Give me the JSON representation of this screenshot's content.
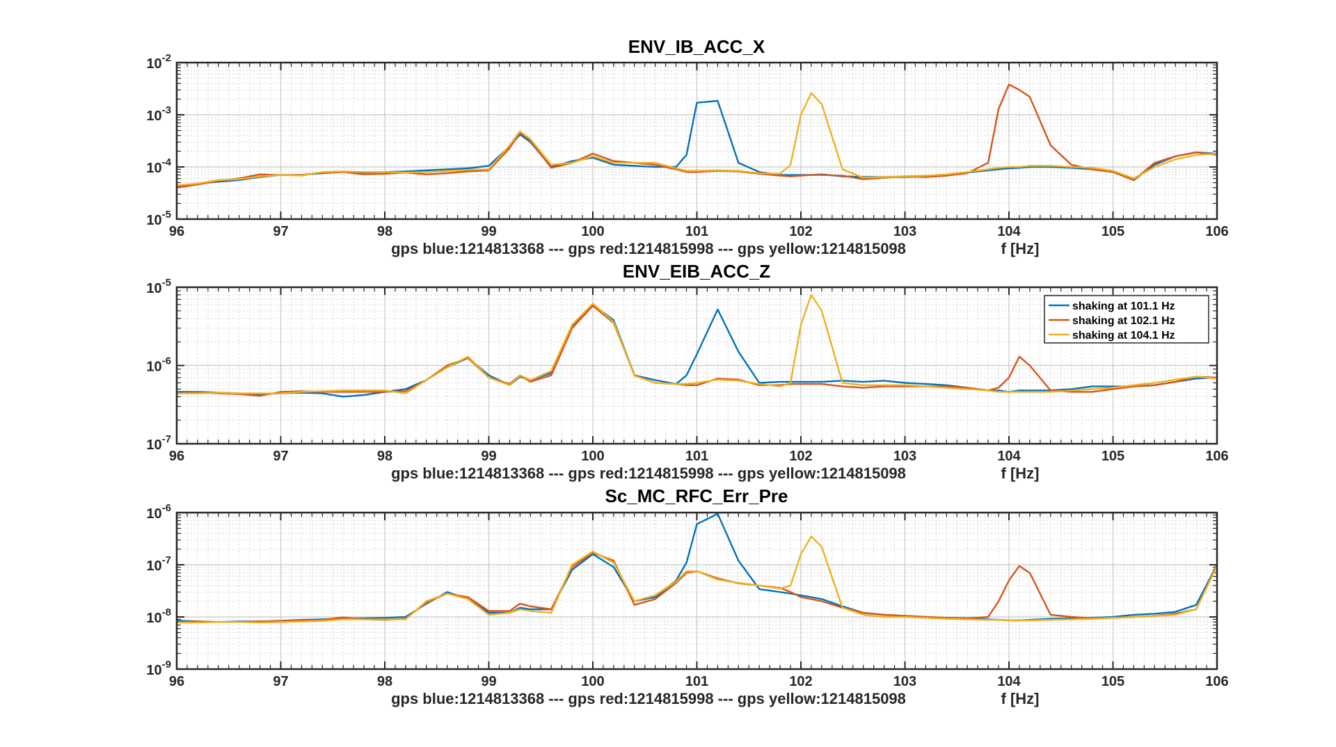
{
  "chart_data": [
    {
      "type": "line",
      "title": "ENV_IB_ACC_X",
      "xlabel": "gps blue:1214813368 --- gps red:1214815998 --- gps yellow:1214815098",
      "xunit": "f [Hz]",
      "xlim": [
        96,
        106
      ],
      "ylim": [
        1e-05,
        0.01
      ],
      "yscale": "log",
      "grid": true,
      "minor_grid": true,
      "x_ticks": [
        "96",
        "97",
        "98",
        "99",
        "100",
        "101",
        "102",
        "103",
        "104",
        "105",
        "106"
      ],
      "y_ticks": [
        {
          "base": "10",
          "exp": "-5"
        },
        {
          "base": "10",
          "exp": "-4"
        },
        {
          "base": "10",
          "exp": "-3"
        },
        {
          "base": "10",
          "exp": "-2"
        }
      ],
      "x": [
        96,
        96.2,
        96.4,
        96.6,
        96.8,
        97,
        97.2,
        97.4,
        97.6,
        97.8,
        98,
        98.2,
        98.4,
        98.6,
        98.8,
        99,
        99.2,
        99.3,
        99.4,
        99.6,
        99.8,
        100,
        100.2,
        100.4,
        100.6,
        100.8,
        100.9,
        101,
        101.2,
        101.4,
        101.6,
        101.8,
        101.9,
        102,
        102.1,
        102.2,
        102.4,
        102.6,
        102.8,
        103,
        103.2,
        103.4,
        103.6,
        103.8,
        103.9,
        104,
        104.1,
        104.2,
        104.4,
        104.6,
        104.8,
        105,
        105.2,
        105.4,
        105.6,
        105.8,
        106
      ],
      "series": [
        {
          "name": "shaking at 101.1 Hz",
          "color": "#0072BD",
          "values": [
            4.2e-05,
            4.8e-05,
            5.2e-05,
            5.6e-05,
            6.4e-05,
            7e-05,
            7e-05,
            7.6e-05,
            8e-05,
            7.8e-05,
            8e-05,
            8.2e-05,
            8.6e-05,
            9e-05,
            9.4e-05,
            0.000105,
            0.00025,
            0.00042,
            0.0003,
            0.0001,
            0.00013,
            0.00015,
            0.00011,
            0.000105,
            0.0001,
            0.0001,
            0.00017,
            0.0017,
            0.00185,
            0.00012,
            8e-05,
            7e-05,
            7e-05,
            7e-05,
            7e-05,
            7.2e-05,
            6.6e-05,
            6.4e-05,
            6.4e-05,
            6.4e-05,
            6.6e-05,
            7e-05,
            7.8e-05,
            8.6e-05,
            9e-05,
            9.4e-05,
            9.6e-05,
            0.0001,
            0.0001,
            9.6e-05,
            9e-05,
            8e-05,
            5.6e-05,
            0.00011,
            0.00016,
            0.00019,
            0.00018
          ]
        },
        {
          "name": "shaking at 102.1 Hz",
          "color": "#D95319",
          "values": [
            4e-05,
            4.6e-05,
            5.4e-05,
            6e-05,
            7.2e-05,
            7e-05,
            7e-05,
            7.8e-05,
            8e-05,
            7.2e-05,
            7.4e-05,
            7.8e-05,
            7.2e-05,
            7.6e-05,
            8.2e-05,
            8.6e-05,
            0.00023,
            0.00046,
            0.00032,
            9.6e-05,
            0.00012,
            0.00018,
            0.00013,
            0.00012,
            0.00011,
            9e-05,
            8e-05,
            8e-05,
            8.4e-05,
            8.2e-05,
            7.4e-05,
            6.8e-05,
            6.6e-05,
            6.8e-05,
            7e-05,
            7e-05,
            6.8e-05,
            5.8e-05,
            6.2e-05,
            6.6e-05,
            6.4e-05,
            6.8e-05,
            7.6e-05,
            0.00012,
            0.0013,
            0.0038,
            0.003,
            0.0022,
            0.00026,
            0.00011,
            9e-05,
            8e-05,
            5.6e-05,
            0.00012,
            0.00016,
            0.00019,
            0.00017
          ]
        },
        {
          "name": "shaking at 104.1 Hz",
          "color": "#EDB120",
          "values": [
            4.4e-05,
            4.8e-05,
            5.6e-05,
            5.8e-05,
            6.6e-05,
            7e-05,
            6.8e-05,
            8e-05,
            8.2e-05,
            8e-05,
            8e-05,
            7.8e-05,
            8e-05,
            8.4e-05,
            8.8e-05,
            9e-05,
            0.00026,
            0.00048,
            0.00034,
            0.00011,
            0.00012,
            0.00016,
            0.00012,
            0.00012,
            0.00012,
            9.4e-05,
            8.4e-05,
            8.4e-05,
            8.6e-05,
            8.4e-05,
            7.6e-05,
            7.4e-05,
            0.00011,
            0.001,
            0.0026,
            0.0016,
            9e-05,
            6.2e-05,
            6.4e-05,
            6.6e-05,
            6.8e-05,
            7.2e-05,
            8e-05,
            9e-05,
            9.6e-05,
            0.0001,
            0.0001,
            0.000105,
            0.000105,
            0.0001,
            9.6e-05,
            8.4e-05,
            6e-05,
            0.0001,
            0.00014,
            0.00017,
            0.00018
          ]
        }
      ]
    },
    {
      "type": "line",
      "title": "ENV_EIB_ACC_Z",
      "xlabel": "gps blue:1214813368 --- gps red:1214815998 --- gps yellow:1214815098",
      "xunit": "f [Hz]",
      "xlim": [
        96,
        106
      ],
      "ylim": [
        1e-07,
        1e-05
      ],
      "yscale": "log",
      "grid": true,
      "minor_grid": true,
      "legend": "top-right",
      "x_ticks": [
        "96",
        "97",
        "98",
        "99",
        "100",
        "101",
        "102",
        "103",
        "104",
        "105",
        "106"
      ],
      "y_ticks": [
        {
          "base": "10",
          "exp": "-7"
        },
        {
          "base": "10",
          "exp": "-6"
        },
        {
          "base": "10",
          "exp": "-5"
        }
      ],
      "x": [
        96,
        96.2,
        96.4,
        96.6,
        96.8,
        97,
        97.2,
        97.4,
        97.6,
        97.8,
        98,
        98.2,
        98.4,
        98.6,
        98.8,
        99,
        99.2,
        99.3,
        99.4,
        99.6,
        99.8,
        100,
        100.2,
        100.4,
        100.6,
        100.8,
        100.9,
        101,
        101.2,
        101.4,
        101.6,
        101.8,
        101.9,
        102,
        102.1,
        102.2,
        102.4,
        102.6,
        102.8,
        103,
        103.2,
        103.4,
        103.6,
        103.8,
        103.9,
        104,
        104.1,
        104.2,
        104.4,
        104.6,
        104.8,
        105,
        105.2,
        105.4,
        105.6,
        105.8,
        106
      ],
      "series": [
        {
          "name": "shaking at 101.1 Hz",
          "color": "#0072BD",
          "values": [
            4.6e-07,
            4.6e-07,
            4.5e-07,
            4.4e-07,
            4.3e-07,
            4.4e-07,
            4.5e-07,
            4.4e-07,
            4e-07,
            4.2e-07,
            4.6e-07,
            5e-07,
            6.5e-07,
            9.5e-07,
            1.25e-06,
            7.5e-07,
            5.6e-07,
            7.2e-07,
            6.5e-07,
            8e-07,
            3.2e-06,
            6e-06,
            3.8e-06,
            7.5e-07,
            6.5e-07,
            5.8e-07,
            7.5e-07,
            1.4e-06,
            5.2e-06,
            1.5e-06,
            6e-07,
            6.2e-07,
            6.2e-07,
            6.2e-07,
            6.2e-07,
            6.2e-07,
            6.4e-07,
            6.2e-07,
            6.4e-07,
            6e-07,
            5.8e-07,
            5.6e-07,
            5.2e-07,
            4.8e-07,
            4.8e-07,
            4.6e-07,
            4.8e-07,
            4.8e-07,
            4.8e-07,
            5e-07,
            5.4e-07,
            5.4e-07,
            5.4e-07,
            5.6e-07,
            6.2e-07,
            6.8e-07,
            7e-07
          ]
        },
        {
          "name": "shaking at 102.1 Hz",
          "color": "#D95319",
          "values": [
            4.4e-07,
            4.5e-07,
            4.4e-07,
            4.3e-07,
            4.1e-07,
            4.6e-07,
            4.7e-07,
            4.6e-07,
            4.6e-07,
            4.6e-07,
            4.6e-07,
            4.7e-07,
            6.5e-07,
            1e-06,
            1.25e-06,
            7e-07,
            5.8e-07,
            7.5e-07,
            6.2e-07,
            7.5e-07,
            3e-06,
            5.8e-06,
            3.5e-06,
            7.5e-07,
            6e-07,
            5.8e-07,
            5.6e-07,
            5.6e-07,
            6.8e-07,
            6.6e-07,
            5.6e-07,
            5.6e-07,
            5.8e-07,
            5.8e-07,
            5.8e-07,
            5.8e-07,
            5.4e-07,
            5.2e-07,
            5.4e-07,
            5.4e-07,
            5.4e-07,
            5.4e-07,
            5.2e-07,
            4.8e-07,
            5.2e-07,
            7e-07,
            1.3e-06,
            1e-06,
            4.8e-07,
            4.6e-07,
            4.6e-07,
            5e-07,
            5.4e-07,
            5.6e-07,
            6.2e-07,
            7.2e-07,
            7e-07
          ]
        },
        {
          "name": "shaking at 104.1 Hz",
          "color": "#EDB120",
          "values": [
            4.4e-07,
            4.4e-07,
            4.5e-07,
            4.4e-07,
            4.4e-07,
            4.4e-07,
            4.6e-07,
            4.7e-07,
            4.8e-07,
            4.8e-07,
            4.8e-07,
            4.4e-07,
            6.5e-07,
            9.5e-07,
            1.3e-06,
            7e-07,
            5.6e-07,
            7.5e-07,
            6.5e-07,
            8.5e-07,
            3.3e-06,
            6.2e-06,
            3.6e-06,
            7.4e-07,
            6e-07,
            5.8e-07,
            5.8e-07,
            6e-07,
            6.6e-07,
            6.4e-07,
            5.8e-07,
            5.4e-07,
            6e-07,
            3.3e-06,
            8e-06,
            5e-06,
            6e-07,
            5.6e-07,
            5.6e-07,
            5.6e-07,
            5.4e-07,
            5.2e-07,
            5e-07,
            4.8e-07,
            4.6e-07,
            4.6e-07,
            4.6e-07,
            4.6e-07,
            4.6e-07,
            4.8e-07,
            5e-07,
            5.2e-07,
            5.6e-07,
            6e-07,
            6.6e-07,
            7.2e-07,
            6.8e-07
          ]
        }
      ]
    },
    {
      "type": "line",
      "title": "Sc_MC_RFC_Err_Pre",
      "xlabel": "gps blue:1214813368 --- gps red:1214815998 --- gps yellow:1214815098",
      "xunit": "f [Hz]",
      "xlim": [
        96,
        106
      ],
      "ylim": [
        1e-09,
        1e-06
      ],
      "yscale": "log",
      "grid": true,
      "minor_grid": true,
      "x_ticks": [
        "96",
        "97",
        "98",
        "99",
        "100",
        "101",
        "102",
        "103",
        "104",
        "105",
        "106"
      ],
      "y_ticks": [
        {
          "base": "10",
          "exp": "-9"
        },
        {
          "base": "10",
          "exp": "-8"
        },
        {
          "base": "10",
          "exp": "-7"
        },
        {
          "base": "10",
          "exp": "-6"
        }
      ],
      "x": [
        96,
        96.2,
        96.4,
        96.6,
        96.8,
        97,
        97.2,
        97.4,
        97.6,
        97.8,
        98,
        98.2,
        98.4,
        98.6,
        98.8,
        99,
        99.2,
        99.3,
        99.4,
        99.6,
        99.8,
        100,
        100.2,
        100.4,
        100.6,
        100.8,
        100.9,
        101,
        101.2,
        101.4,
        101.6,
        101.8,
        101.9,
        102,
        102.1,
        102.2,
        102.4,
        102.6,
        102.8,
        103,
        103.2,
        103.4,
        103.6,
        103.8,
        103.9,
        104,
        104.1,
        104.2,
        104.4,
        104.6,
        104.8,
        105,
        105.2,
        105.4,
        105.6,
        105.8,
        106
      ],
      "series": [
        {
          "name": "shaking at 101.1 Hz",
          "color": "#0072BD",
          "values": [
            8.5e-09,
            8.2e-09,
            8e-09,
            8.2e-09,
            8.2e-09,
            8.4e-09,
            8.8e-09,
            9e-09,
            9.4e-09,
            9.4e-09,
            9.6e-09,
            1e-08,
            1.8e-08,
            3e-08,
            2.2e-08,
            1.2e-08,
            1.2e-08,
            1.5e-08,
            1.4e-08,
            1.4e-08,
            8e-08,
            1.6e-07,
            9e-08,
            2e-08,
            2.4e-08,
            5e-08,
            1.1e-07,
            6e-07,
            9.5e-07,
            1.2e-07,
            3.4e-08,
            3e-08,
            2.8e-08,
            2.6e-08,
            2.4e-08,
            2.2e-08,
            1.6e-08,
            1.2e-08,
            1.1e-08,
            1.05e-08,
            1e-08,
            9.6e-09,
            9.4e-09,
            9e-09,
            8.8e-09,
            8.6e-09,
            8.6e-09,
            8.8e-09,
            9.2e-09,
            9.4e-09,
            9.6e-09,
            1e-08,
            1.1e-08,
            1.15e-08,
            1.25e-08,
            1.7e-08,
            1e-07
          ]
        },
        {
          "name": "shaking at 102.1 Hz",
          "color": "#D95319",
          "values": [
            8e-09,
            8.2e-09,
            8e-09,
            8e-09,
            8.2e-09,
            8.4e-09,
            8.6e-09,
            8.8e-09,
            9.8e-09,
            9e-09,
            8.8e-09,
            9.2e-09,
            1.9e-08,
            2.8e-08,
            2.4e-08,
            1.3e-08,
            1.3e-08,
            1.8e-08,
            1.6e-08,
            1.4e-08,
            9e-08,
            1.7e-07,
            1.2e-07,
            1.7e-08,
            2.2e-08,
            4.5e-08,
            7e-08,
            7.5e-08,
            5.5e-08,
            4.4e-08,
            4e-08,
            3.6e-08,
            3e-08,
            2.4e-08,
            2.2e-08,
            2e-08,
            1.5e-08,
            1.2e-08,
            1.1e-08,
            1.05e-08,
            1e-08,
            9.6e-09,
            9.4e-09,
            1e-08,
            2e-08,
            5e-08,
            9.5e-08,
            7e-08,
            1.1e-08,
            1e-08,
            9.4e-09,
            9.6e-09,
            1e-08,
            1.05e-08,
            1.15e-08,
            1.4e-08,
            1e-07
          ]
        },
        {
          "name": "shaking at 104.1 Hz",
          "color": "#EDB120",
          "values": [
            7.8e-09,
            7.8e-09,
            8e-09,
            8e-09,
            7.8e-09,
            8e-09,
            8.2e-09,
            8.4e-09,
            9e-09,
            9e-09,
            9e-09,
            9e-09,
            2e-08,
            2.8e-08,
            2.2e-08,
            1.1e-08,
            1.2e-08,
            1.4e-08,
            1.3e-08,
            1.2e-08,
            1e-07,
            1.8e-07,
            1.1e-07,
            2e-08,
            2.6e-08,
            4.8e-08,
            7.5e-08,
            7.5e-08,
            5.2e-08,
            4.5e-08,
            4e-08,
            3.5e-08,
            4e-08,
            1.6e-07,
            3.5e-07,
            2.2e-07,
            1.5e-08,
            1.1e-08,
            1e-08,
            1e-08,
            9.6e-09,
            9.2e-09,
            9e-09,
            8.8e-09,
            8.8e-09,
            8.6e-09,
            8.6e-09,
            8.6e-09,
            8.8e-09,
            9e-09,
            9.2e-09,
            9.6e-09,
            1e-08,
            1.05e-08,
            1.1e-08,
            1.4e-08,
            9.5e-08
          ]
        }
      ]
    }
  ]
}
